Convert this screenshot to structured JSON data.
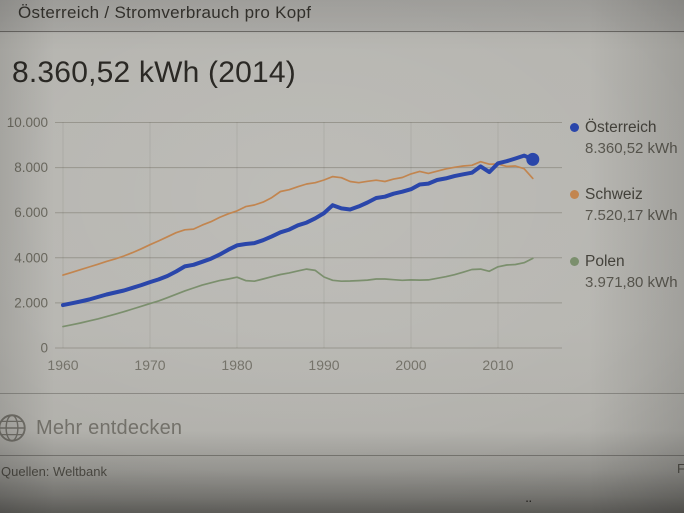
{
  "page": {
    "breadcrumb": "Österreich / Stromverbrauch pro Kopf",
    "title": "8.360,52 kWh (2014)",
    "more_label": "Mehr entdecken",
    "sources_label": "Quellen: Weltbank",
    "feedback_partial": "F",
    "cutoff_text_hint": "¨"
  },
  "colors": {
    "austria_blue": "#2a46aa",
    "switzerland_orange": "#c2854f",
    "poland_green": "#7b8f6d",
    "gridline": "#98968e",
    "axis_text": "#6b695f",
    "title_text": "#2b2925"
  },
  "chart_data": {
    "type": "line",
    "title": "Stromverbrauch pro Kopf",
    "xlabel": "",
    "ylabel": "kWh",
    "ylim": [
      0,
      10000
    ],
    "grid": true,
    "legend_position": "right",
    "x": [
      1960,
      1961,
      1962,
      1963,
      1964,
      1965,
      1966,
      1967,
      1968,
      1969,
      1970,
      1971,
      1972,
      1973,
      1974,
      1975,
      1976,
      1977,
      1978,
      1979,
      1980,
      1981,
      1982,
      1983,
      1984,
      1985,
      1986,
      1987,
      1988,
      1989,
      1990,
      1991,
      1992,
      1993,
      1994,
      1995,
      1996,
      1997,
      1998,
      1999,
      2000,
      2001,
      2002,
      2003,
      2004,
      2005,
      2006,
      2007,
      2008,
      2009,
      2010,
      2011,
      2012,
      2013,
      2014
    ],
    "series": [
      {
        "name": "Österreich",
        "value_label": "8.360,52 kWh",
        "color": "#2a46aa",
        "emphasis": true,
        "values": [
          1900,
          1980,
          2060,
          2150,
          2260,
          2370,
          2460,
          2550,
          2670,
          2790,
          2920,
          3040,
          3190,
          3390,
          3620,
          3690,
          3820,
          3960,
          4140,
          4360,
          4550,
          4610,
          4650,
          4780,
          4950,
          5130,
          5250,
          5440,
          5560,
          5750,
          5980,
          6330,
          6190,
          6140,
          6280,
          6450,
          6650,
          6710,
          6840,
          6930,
          7040,
          7250,
          7290,
          7450,
          7520,
          7620,
          7700,
          7770,
          8050,
          7800,
          8190,
          8280,
          8400,
          8530,
          8360.52
        ]
      },
      {
        "name": "Schweiz",
        "value_label": "7.520,17 kWh",
        "color": "#c2854f",
        "emphasis": false,
        "values": [
          3230,
          3350,
          3470,
          3590,
          3710,
          3840,
          3950,
          4080,
          4230,
          4400,
          4580,
          4750,
          4930,
          5110,
          5240,
          5270,
          5450,
          5600,
          5790,
          5950,
          6080,
          6270,
          6340,
          6470,
          6670,
          6940,
          7020,
          7150,
          7270,
          7330,
          7450,
          7600,
          7550,
          7380,
          7330,
          7390,
          7440,
          7380,
          7490,
          7560,
          7720,
          7830,
          7740,
          7840,
          7940,
          8010,
          8070,
          8100,
          8260,
          8150,
          8160,
          8050,
          8070,
          7950,
          7520.17
        ]
      },
      {
        "name": "Polen",
        "value_label": "3.971,80 kWh",
        "color": "#7b8f6d",
        "emphasis": false,
        "values": [
          950,
          1030,
          1110,
          1200,
          1290,
          1390,
          1500,
          1610,
          1730,
          1850,
          1970,
          2090,
          2230,
          2380,
          2530,
          2660,
          2790,
          2890,
          2990,
          3060,
          3140,
          2990,
          2960,
          3060,
          3160,
          3260,
          3330,
          3420,
          3500,
          3440,
          3150,
          3000,
          2960,
          2970,
          2990,
          3010,
          3060,
          3060,
          3030,
          3000,
          3020,
          3010,
          3020,
          3090,
          3160,
          3250,
          3360,
          3480,
          3500,
          3400,
          3600,
          3680,
          3700,
          3780,
          3971.8
        ]
      }
    ],
    "yticks": [
      {
        "label": "10.000",
        "value": 10000
      },
      {
        "label": "8.000",
        "value": 8000
      },
      {
        "label": "6.000",
        "value": 6000
      },
      {
        "label": "4.000",
        "value": 4000
      },
      {
        "label": "2.000",
        "value": 2000
      },
      {
        "label": "0",
        "value": 0
      }
    ],
    "xticks": [
      1960,
      1970,
      1980,
      1990,
      2000,
      2010
    ]
  }
}
